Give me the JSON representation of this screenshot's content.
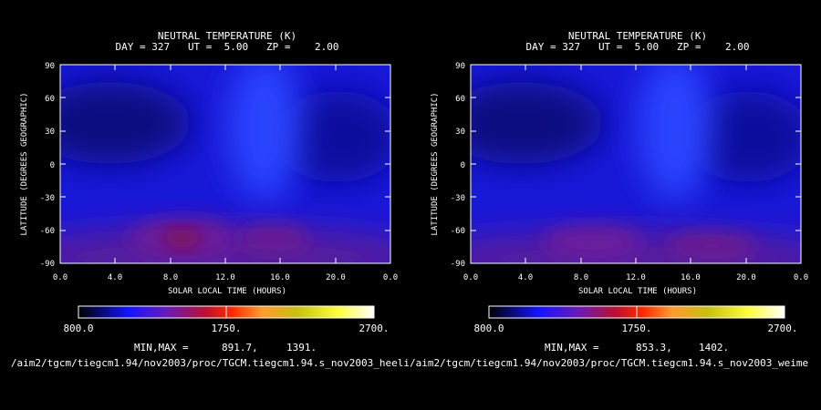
{
  "chart_data": [
    {
      "type": "heatmap",
      "title": "NEUTRAL TEMPERATURE (K)",
      "subtitle": "DAY = 327   UT =  5.00   ZP =    2.00",
      "xlabel": "SOLAR LOCAL TIME (HOURS)",
      "ylabel": "LATITUDE (DEGREES GEOGRAPHIC)",
      "xlim": [
        0,
        24
      ],
      "ylim": [
        -90,
        90
      ],
      "x_ticks": [
        "0.0",
        "4.0",
        "8.0",
        "12.0",
        "16.0",
        "20.0",
        "0.0"
      ],
      "y_ticks": [
        "90",
        "60",
        "30",
        "0",
        "-30",
        "-60",
        "-90"
      ],
      "colorbar": {
        "min": "800.0",
        "mid": "1750.",
        "max": "2700."
      },
      "minmax_label": "MIN,MAX =",
      "min_value": "891.7,",
      "max_value": "1391.",
      "path": "/aim2/tgcm/tiegcm1.94/nov2003/proc/TGCM.tiegcm1.94.s_nov2003_heeli"
    },
    {
      "type": "heatmap",
      "title": "NEUTRAL TEMPERATURE (K)",
      "subtitle": "DAY = 327   UT =  5.00   ZP =    2.00",
      "xlabel": "SOLAR LOCAL TIME (HOURS)",
      "ylabel": "LATITUDE (DEGREES GEOGRAPHIC)",
      "xlim": [
        0,
        24
      ],
      "ylim": [
        -90,
        90
      ],
      "x_ticks": [
        "0.0",
        "4.0",
        "8.0",
        "12.0",
        "16.0",
        "20.0",
        "0.0"
      ],
      "y_ticks": [
        "90",
        "60",
        "30",
        "0",
        "-30",
        "-60",
        "-90"
      ],
      "colorbar": {
        "min": "800.0",
        "mid": "1750.",
        "max": "2700."
      },
      "minmax_label": "MIN,MAX =",
      "min_value": "853.3,",
      "max_value": "1402.",
      "path": "/aim2/tgcm/tiegcm1.94/nov2003/proc/TGCM.tiegcm1.94.s_nov2003_weime"
    }
  ]
}
